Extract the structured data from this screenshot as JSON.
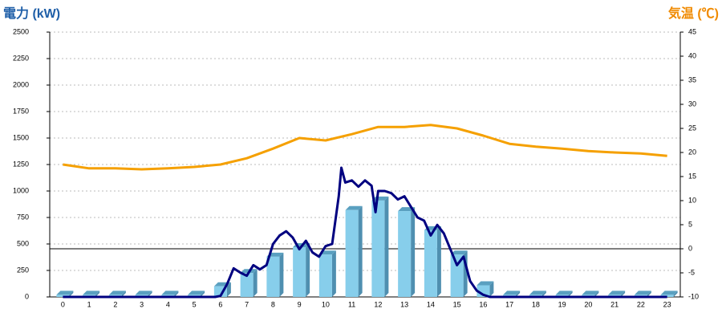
{
  "chart_data": {
    "type": "bar",
    "title": "電力 (kW)",
    "y2_title": "気温 (℃)",
    "categories": [
      "0",
      "1",
      "2",
      "3",
      "4",
      "5",
      "6",
      "7",
      "8",
      "9",
      "10",
      "11",
      "12",
      "13",
      "14",
      "15",
      "16",
      "17",
      "18",
      "19",
      "20",
      "21",
      "22",
      "23"
    ],
    "ylim": [
      0,
      2500
    ],
    "yticks": [
      0,
      250,
      500,
      750,
      1000,
      1250,
      1500,
      1750,
      2000,
      2250,
      2500
    ],
    "y2lim": [
      -10,
      45
    ],
    "y2ticks": [
      -10,
      -5,
      0,
      5,
      10,
      15,
      20,
      25,
      30,
      35,
      40,
      45
    ],
    "grid": true,
    "series": [
      {
        "type": "bar",
        "color": "#87ceeb",
        "values": [
          20,
          20,
          20,
          20,
          20,
          20,
          100,
          225,
          380,
          470,
          400,
          820,
          910,
          810,
          630,
          400,
          110,
          20,
          20,
          20,
          20,
          20,
          20,
          20
        ]
      },
      {
        "type": "line",
        "color": "#000080",
        "x": [
          0,
          5.8,
          6,
          6.25,
          6.5,
          6.75,
          7,
          7.25,
          7.5,
          7.75,
          8,
          8.25,
          8.5,
          8.75,
          9,
          9.25,
          9.5,
          9.75,
          10,
          10.25,
          10.5,
          10.6,
          10.75,
          11,
          11.25,
          11.5,
          11.75,
          11.9,
          12,
          12.25,
          12.5,
          12.75,
          13,
          13.25,
          13.5,
          13.75,
          14,
          14.25,
          14.5,
          14.75,
          15,
          15.25,
          15.5,
          15.75,
          16,
          16.25,
          23
        ],
        "values": [
          0,
          0,
          10,
          120,
          270,
          230,
          200,
          300,
          260,
          300,
          500,
          580,
          620,
          560,
          450,
          530,
          420,
          380,
          480,
          500,
          950,
          1220,
          1080,
          1100,
          1040,
          1100,
          1050,
          800,
          1000,
          1000,
          980,
          920,
          950,
          850,
          750,
          720,
          580,
          680,
          600,
          450,
          300,
          380,
          150,
          60,
          20,
          0,
          0
        ]
      },
      {
        "type": "line",
        "axis": "y2",
        "color": "#f5a000",
        "values": [
          17.5,
          16.7,
          16.7,
          16.5,
          16.7,
          17,
          17.5,
          18.8,
          20.8,
          23,
          22.5,
          23.8,
          25.3,
          25.3,
          25.7,
          25,
          23.5,
          21.8,
          21.2,
          20.8,
          20.3,
          20,
          19.8,
          19.3
        ]
      }
    ]
  }
}
